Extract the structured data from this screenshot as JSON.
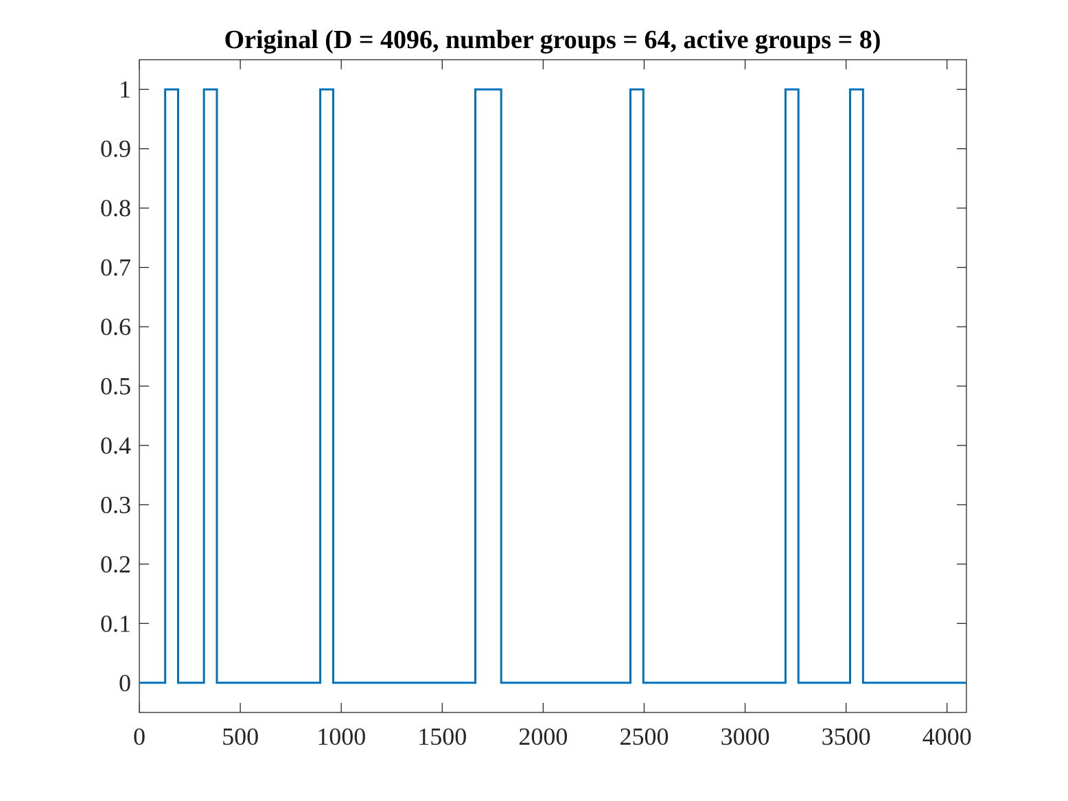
{
  "chart_data": {
    "type": "line",
    "title": "Original (D = 4096, number groups = 64, active groups = 8)",
    "xlabel": "",
    "ylabel": "",
    "xlim": [
      0,
      4096
    ],
    "ylim": [
      -0.05,
      1.05
    ],
    "xticks": [
      0,
      500,
      1000,
      1500,
      2000,
      2500,
      3000,
      3500,
      4000
    ],
    "xtick_labels": [
      "0",
      "500",
      "1000",
      "1500",
      "2000",
      "2500",
      "3000",
      "3500",
      "4000"
    ],
    "yticks": [
      0,
      0.1,
      0.2,
      0.3,
      0.4,
      0.5,
      0.6,
      0.7,
      0.8,
      0.9,
      1
    ],
    "ytick_labels": [
      "0",
      "0.1",
      "0.2",
      "0.3",
      "0.4",
      "0.5",
      "0.6",
      "0.7",
      "0.8",
      "0.9",
      "1"
    ],
    "grid": false,
    "series": [
      {
        "color": "#0072BD",
        "active_intervals": [
          [
            128,
            192
          ],
          [
            320,
            384
          ],
          [
            896,
            960
          ],
          [
            1664,
            1792
          ],
          [
            2432,
            2496
          ],
          [
            3200,
            3264
          ],
          [
            3520,
            3584
          ]
        ],
        "x": [
          0,
          128,
          128,
          192,
          192,
          320,
          320,
          384,
          384,
          896,
          896,
          960,
          960,
          1664,
          1664,
          1792,
          1792,
          2432,
          2432,
          2496,
          2496,
          3200,
          3200,
          3264,
          3264,
          3520,
          3520,
          3584,
          3584,
          4096
        ],
        "y": [
          0,
          0,
          1,
          1,
          0,
          0,
          1,
          1,
          0,
          0,
          1,
          1,
          0,
          0,
          1,
          1,
          0,
          0,
          1,
          1,
          0,
          0,
          1,
          1,
          0,
          0,
          1,
          1,
          0,
          0
        ]
      }
    ]
  }
}
